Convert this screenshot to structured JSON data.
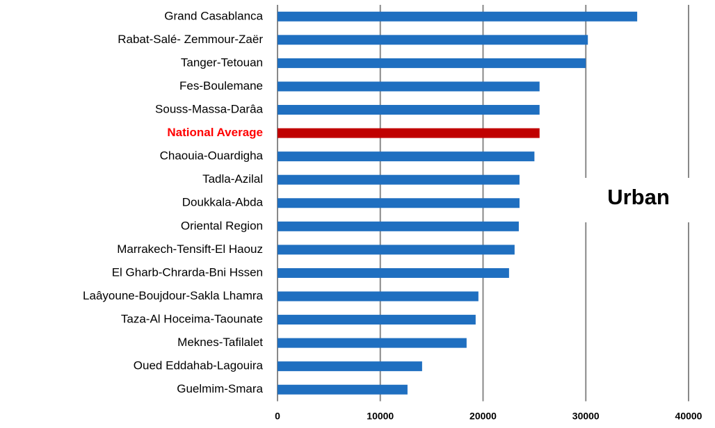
{
  "chart_data": {
    "type": "barh",
    "annotation": "Urban",
    "categories": [
      "Grand Casablanca",
      "Rabat-Salé- Zemmour-Zaër",
      "Tanger-Tetouan",
      "Fes-Boulemane",
      "Souss-Massa-Darâa",
      "National Average",
      "Chaouia-Ouardigha",
      "Tadla-Azilal",
      "Doukkala-Abda",
      "Oriental Region",
      "Marrakech-Tensift-El Haouz",
      "El Gharb-Chrarda-Bni Hssen",
      "Laâyoune-Boujdour-Sakla Lhamra",
      "Taza-Al Hoceima-Taounate",
      "Meknes-Tafilalet",
      "Oued Eddahab-Lagouira",
      "Guelmim-Smara"
    ],
    "values": [
      35000,
      30200,
      30000,
      25500,
      25500,
      25500,
      25000,
      23550,
      23550,
      23480,
      23070,
      22530,
      19550,
      19280,
      18400,
      14070,
      12650
    ],
    "colors": [
      "#1f6fc0",
      "#1f6fc0",
      "#1f6fc0",
      "#1f6fc0",
      "#1f6fc0",
      "#c00000",
      "#1f6fc0",
      "#1f6fc0",
      "#1f6fc0",
      "#1f6fc0",
      "#1f6fc0",
      "#1f6fc0",
      "#1f6fc0",
      "#1f6fc0",
      "#1f6fc0",
      "#1f6fc0",
      "#1f6fc0"
    ],
    "label_colors": [
      "#000000",
      "#000000",
      "#000000",
      "#000000",
      "#000000",
      "#ff0000",
      "#000000",
      "#000000",
      "#000000",
      "#000000",
      "#000000",
      "#000000",
      "#000000",
      "#000000",
      "#000000",
      "#000000",
      "#000000"
    ],
    "xlim": [
      0,
      40000
    ],
    "xticks": [
      0,
      10000,
      20000,
      30000,
      40000
    ],
    "grid": true
  }
}
